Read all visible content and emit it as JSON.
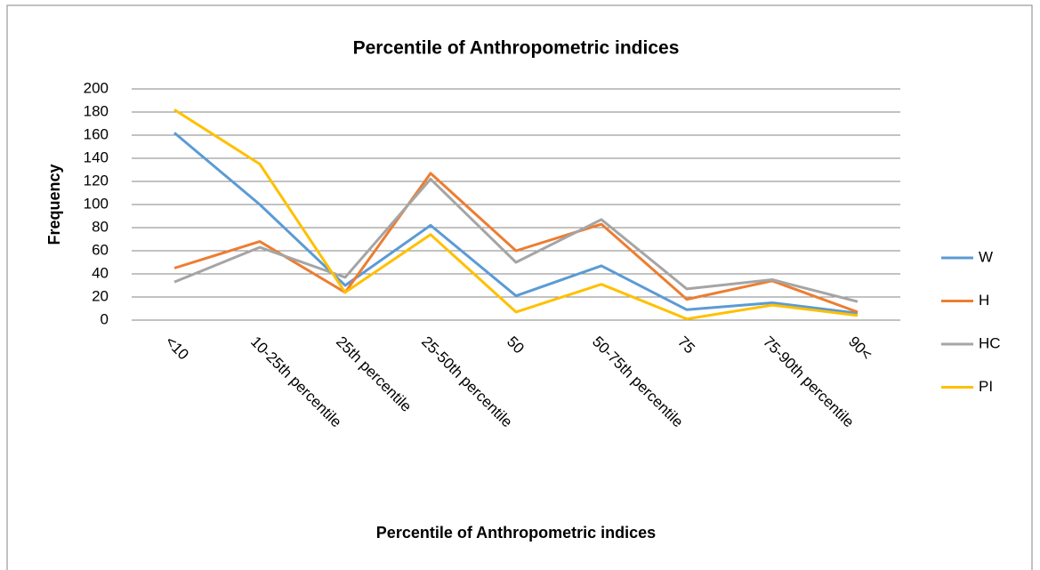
{
  "chart_data": {
    "type": "line",
    "title": "Percentile of Anthropometric indices",
    "x_label": "Percentile of Anthropometric indices",
    "y_label": "Frequency",
    "categories": [
      "<10",
      "10-25th percentile",
      "25th percentile",
      "25-50th percentile",
      "50",
      "50-75th percentile",
      "75",
      "75-90th percentile",
      "90<"
    ],
    "series": [
      {
        "name": "W",
        "color": "#5b9bd5",
        "values": [
          162,
          100,
          30,
          82,
          21,
          47,
          9,
          15,
          6
        ]
      },
      {
        "name": "H",
        "color": "#ed7d31",
        "values": [
          45,
          68,
          24,
          127,
          60,
          83,
          18,
          34,
          7
        ]
      },
      {
        "name": "HC",
        "color": "#a5a5a5",
        "values": [
          33,
          63,
          37,
          122,
          50,
          87,
          27,
          35,
          16
        ]
      },
      {
        "name": "PI",
        "color": "#ffc000",
        "values": [
          182,
          135,
          24,
          74,
          7,
          31,
          1,
          13,
          4
        ]
      }
    ],
    "ylim": [
      0,
      200
    ],
    "yticks": [
      0,
      20,
      40,
      60,
      80,
      100,
      120,
      140,
      160,
      180,
      200
    ],
    "grid": true,
    "legend": "right"
  }
}
